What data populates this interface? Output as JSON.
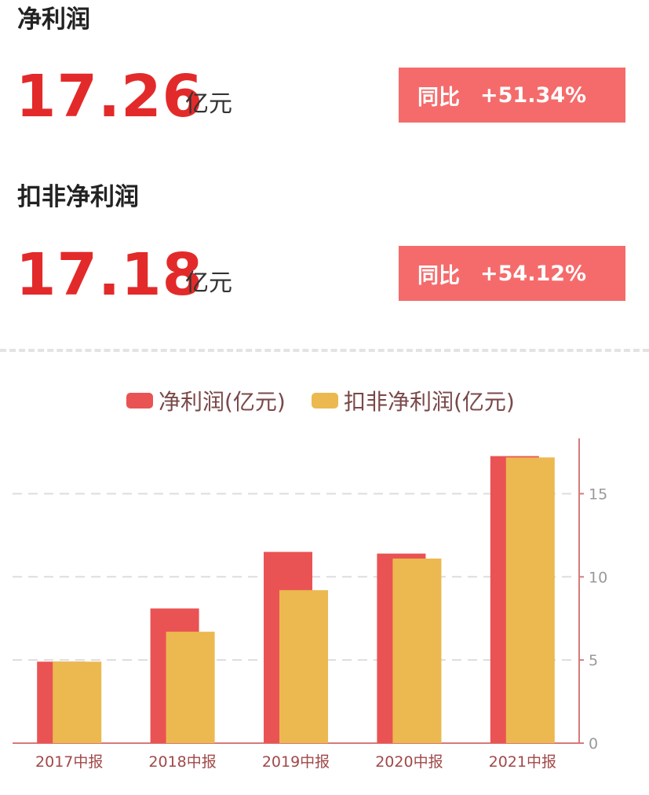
{
  "metrics": [
    {
      "title": "净利润",
      "value": "17.26",
      "unit": "亿元",
      "yoy_label": "同比",
      "yoy_value": "+51.34%"
    },
    {
      "title": "扣非净利润",
      "value": "17.18",
      "unit": "亿元",
      "yoy_label": "同比",
      "yoy_value": "+54.12%"
    }
  ],
  "colors": {
    "accent_red": "#e32a2a",
    "badge": "#f56b6b",
    "series_net": "#ea5353",
    "series_deducted": "#ebb94f"
  },
  "chart_data": {
    "type": "bar",
    "categories": [
      "2017中报",
      "2018中报",
      "2019中报",
      "2020中报",
      "2021中报"
    ],
    "series": [
      {
        "name": "净利润(亿元)",
        "values": [
          4.9,
          8.1,
          11.5,
          11.4,
          17.26
        ]
      },
      {
        "name": "扣非净利润(亿元)",
        "values": [
          4.9,
          6.7,
          9.2,
          11.1,
          17.18
        ]
      }
    ],
    "yticks": [
      0,
      5,
      10,
      15
    ],
    "ylim": [
      0,
      18.8
    ],
    "y_axis_side": "right",
    "grid": true,
    "legend": "top-center"
  }
}
